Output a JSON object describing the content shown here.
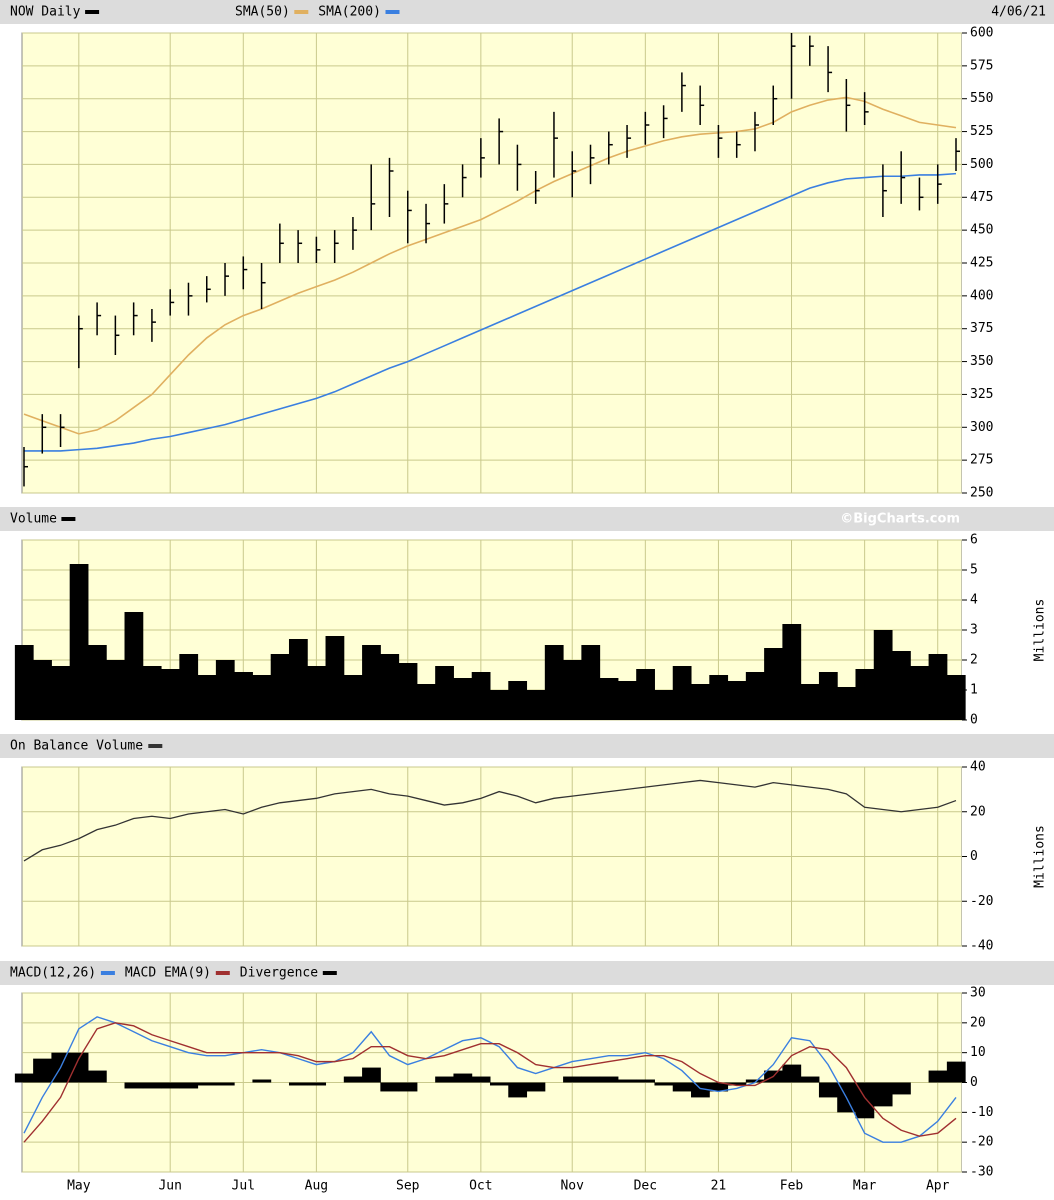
{
  "chart_data": [
    {
      "type": "ohlc",
      "title": "NOW Daily",
      "date": "4/06/21",
      "color": "#000000",
      "high": [
        285,
        310,
        310,
        385,
        395,
        385,
        395,
        390,
        405,
        410,
        415,
        425,
        430,
        425,
        455,
        450,
        445,
        450,
        460,
        500,
        505,
        480,
        470,
        485,
        500,
        520,
        535,
        515,
        495,
        540,
        510,
        515,
        525,
        530,
        540,
        545,
        570,
        560,
        530,
        525,
        540,
        560,
        600,
        598,
        590,
        565,
        555,
        500,
        510,
        490,
        500,
        520
      ],
      "low": [
        255,
        280,
        285,
        345,
        370,
        355,
        370,
        365,
        385,
        385,
        395,
        400,
        405,
        390,
        425,
        425,
        425,
        425,
        435,
        450,
        460,
        440,
        440,
        455,
        475,
        490,
        500,
        480,
        470,
        490,
        475,
        485,
        500,
        505,
        515,
        520,
        540,
        530,
        505,
        505,
        510,
        530,
        550,
        575,
        555,
        525,
        530,
        460,
        470,
        465,
        470,
        495
      ],
      "close": [
        270,
        300,
        300,
        375,
        385,
        370,
        385,
        380,
        395,
        400,
        405,
        415,
        420,
        410,
        440,
        440,
        435,
        440,
        450,
        470,
        495,
        465,
        455,
        470,
        490,
        505,
        525,
        500,
        480,
        520,
        495,
        505,
        515,
        520,
        530,
        535,
        560,
        545,
        520,
        515,
        530,
        550,
        590,
        590,
        570,
        545,
        540,
        480,
        490,
        475,
        485,
        510
      ],
      "series": [
        {
          "name": "SMA(50)",
          "color": "#e0b060",
          "values": [
            310,
            305,
            300,
            295,
            298,
            305,
            315,
            325,
            340,
            355,
            368,
            378,
            385,
            390,
            396,
            402,
            407,
            412,
            418,
            425,
            432,
            438,
            443,
            448,
            453,
            458,
            465,
            472,
            480,
            487,
            493,
            499,
            505,
            510,
            514,
            518,
            521,
            523,
            524,
            525,
            527,
            532,
            540,
            545,
            549,
            551,
            548,
            542,
            537,
            532,
            530,
            528
          ]
        },
        {
          "name": "SMA(200)",
          "color": "#3a7fe0",
          "values": [
            282,
            282,
            282,
            283,
            284,
            286,
            288,
            291,
            293,
            296,
            299,
            302,
            306,
            310,
            314,
            318,
            322,
            327,
            333,
            339,
            345,
            350,
            356,
            362,
            368,
            374,
            380,
            386,
            392,
            398,
            404,
            410,
            416,
            422,
            428,
            434,
            440,
            446,
            452,
            458,
            464,
            470,
            476,
            482,
            486,
            489,
            490,
            491,
            491,
            492,
            492,
            493
          ]
        }
      ],
      "ylim": [
        250,
        600
      ],
      "yticks": [
        250,
        275,
        300,
        325,
        350,
        375,
        400,
        425,
        450,
        475,
        500,
        525,
        550,
        575,
        600
      ],
      "grid": true
    },
    {
      "type": "area",
      "title": "Volume",
      "source": "©BigCharts.com",
      "y_label": "Millions",
      "color": "#000000",
      "values": [
        2.5,
        2.0,
        1.8,
        5.2,
        2.5,
        2.0,
        3.6,
        1.8,
        1.7,
        2.2,
        1.5,
        2.0,
        1.6,
        1.5,
        2.2,
        2.7,
        1.8,
        2.8,
        1.5,
        2.5,
        2.2,
        1.9,
        1.2,
        1.8,
        1.4,
        1.6,
        1.0,
        1.3,
        1.0,
        2.5,
        2.0,
        2.5,
        1.4,
        1.3,
        1.7,
        1.0,
        1.8,
        1.2,
        1.5,
        1.3,
        1.6,
        2.4,
        3.2,
        1.2,
        1.6,
        1.1,
        1.7,
        3.0,
        2.3,
        1.8,
        2.2,
        1.5
      ],
      "ylim": [
        0,
        6
      ],
      "yticks": [
        0,
        1,
        2,
        3,
        4,
        5,
        6
      ],
      "grid": true
    },
    {
      "type": "line",
      "title": "On Balance Volume",
      "y_label": "Millions",
      "color": "#333333",
      "values": [
        -2,
        3,
        5,
        8,
        12,
        14,
        17,
        18,
        17,
        19,
        20,
        21,
        19,
        22,
        24,
        25,
        26,
        28,
        29,
        30,
        28,
        27,
        25,
        23,
        24,
        26,
        29,
        27,
        24,
        26,
        27,
        28,
        29,
        30,
        31,
        32,
        33,
        34,
        33,
        32,
        31,
        33,
        32,
        31,
        30,
        28,
        22,
        21,
        20,
        21,
        22,
        25
      ],
      "ylim": [
        -40,
        40
      ],
      "yticks": [
        -40,
        -20,
        0,
        20,
        40
      ],
      "grid": true
    },
    {
      "type": "macd",
      "categories": [
        null,
        null,
        null,
        "May",
        null,
        null,
        null,
        null,
        "Jun",
        null,
        null,
        null,
        "Jul",
        null,
        null,
        null,
        "Aug",
        null,
        null,
        null,
        null,
        "Sep",
        null,
        null,
        null,
        "Oct",
        null,
        null,
        null,
        null,
        "Nov",
        null,
        null,
        null,
        "Dec",
        null,
        null,
        null,
        "21",
        null,
        null,
        null,
        "Feb",
        null,
        null,
        null,
        "Mar",
        null,
        null,
        null,
        "Apr",
        null
      ],
      "series": [
        {
          "name": "MACD(12,26)",
          "color": "#3a7fe0",
          "values": [
            -17,
            -5,
            5,
            18,
            22,
            20,
            17,
            14,
            12,
            10,
            9,
            9,
            10,
            11,
            10,
            8,
            6,
            7,
            10,
            17,
            9,
            6,
            8,
            11,
            14,
            15,
            12,
            5,
            3,
            5,
            7,
            8,
            9,
            9,
            10,
            8,
            4,
            -2,
            -3,
            -2,
            0,
            6,
            15,
            14,
            6,
            -5,
            -17,
            -20,
            -20,
            -18,
            -13,
            -5
          ]
        },
        {
          "name": "MACD EMA(9)",
          "color": "#a03030",
          "values": [
            -20,
            -13,
            -5,
            8,
            18,
            20,
            19,
            16,
            14,
            12,
            10,
            10,
            10,
            10,
            10,
            9,
            7,
            7,
            8,
            12,
            12,
            9,
            8,
            9,
            11,
            13,
            13,
            10,
            6,
            5,
            5,
            6,
            7,
            8,
            9,
            9,
            7,
            3,
            0,
            -1,
            -1,
            2,
            9,
            12,
            11,
            5,
            -5,
            -12,
            -16,
            -18,
            -17,
            -12
          ]
        },
        {
          "name": "Divergence",
          "color": "#000000",
          "values": [
            3,
            8,
            10,
            10,
            4,
            0,
            -2,
            -2,
            -2,
            -2,
            -1,
            -1,
            0,
            1,
            0,
            -1,
            -1,
            0,
            2,
            5,
            -3,
            -3,
            0,
            2,
            3,
            2,
            -1,
            -5,
            -3,
            0,
            2,
            2,
            2,
            1,
            1,
            -1,
            -3,
            -5,
            -3,
            -1,
            1,
            4,
            6,
            2,
            -5,
            -10,
            -12,
            -8,
            -4,
            0,
            4,
            7
          ]
        }
      ],
      "ylim": [
        -30,
        30
      ],
      "yticks": [
        -30,
        -20,
        -10,
        0,
        10,
        20,
        30
      ],
      "grid": true
    }
  ]
}
